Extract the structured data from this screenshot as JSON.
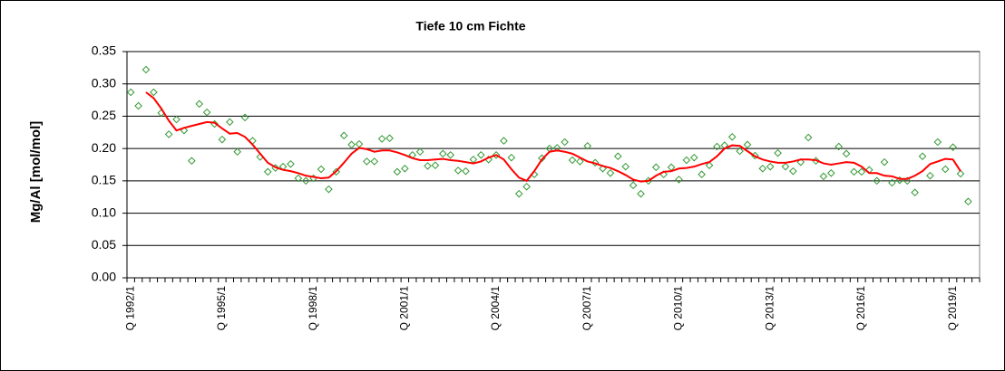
{
  "chart_data": {
    "type": "line",
    "title": "Tiefe  10 cm     Fichte",
    "y_label": "Mg/Al [mol/mol]",
    "categories": [
      "Q 1992/1",
      null,
      null,
      null,
      null,
      null,
      null,
      null,
      null,
      null,
      null,
      null,
      "Q 1995/1",
      null,
      null,
      null,
      null,
      null,
      null,
      null,
      null,
      null,
      null,
      null,
      "Q 1998/1",
      null,
      null,
      null,
      null,
      null,
      null,
      null,
      null,
      null,
      null,
      null,
      "Q 2001/1",
      null,
      null,
      null,
      null,
      null,
      null,
      null,
      null,
      null,
      null,
      null,
      "Q 2004/1",
      null,
      null,
      null,
      null,
      null,
      null,
      null,
      null,
      null,
      null,
      null,
      "Q 2007/1",
      null,
      null,
      null,
      null,
      null,
      null,
      null,
      null,
      null,
      null,
      null,
      "Q 2010/1",
      null,
      null,
      null,
      null,
      null,
      null,
      null,
      null,
      null,
      null,
      null,
      "Q 2013/1",
      null,
      null,
      null,
      null,
      null,
      null,
      null,
      null,
      null,
      null,
      null,
      "Q 2016/1",
      null,
      null,
      null,
      null,
      null,
      null,
      null,
      null,
      null,
      null,
      null,
      "Q 2019/1",
      null,
      null,
      null
    ],
    "series": [
      {
        "color": "#339933",
        "marker": "diamond",
        "values": [
          0.287,
          0.266,
          0.322,
          0.287,
          0.255,
          0.222,
          0.245,
          0.228,
          0.181,
          0.269,
          0.256,
          0.238,
          0.214,
          0.241,
          0.195,
          0.248,
          0.212,
          0.187,
          0.164,
          0.17,
          0.172,
          0.176,
          0.154,
          0.15,
          0.154,
          0.168,
          0.137,
          0.164,
          0.22,
          0.206,
          0.207,
          0.18,
          0.18,
          0.215,
          0.216,
          0.164,
          0.169,
          0.19,
          0.195,
          0.173,
          0.174,
          0.192,
          0.19,
          0.166,
          0.165,
          0.183,
          0.19,
          0.183,
          0.19,
          0.212,
          0.186,
          0.13,
          0.141,
          0.16,
          0.185,
          0.2,
          0.201,
          0.21,
          0.182,
          0.18,
          0.204,
          0.178,
          0.169,
          0.162,
          0.188,
          0.172,
          0.143,
          0.13,
          0.15,
          0.171,
          0.16,
          0.171,
          0.152,
          0.182,
          0.186,
          0.16,
          0.174,
          0.203,
          0.205,
          0.218,
          0.196,
          0.206,
          0.189,
          0.169,
          0.172,
          0.193,
          0.172,
          0.165,
          0.179,
          0.217,
          0.181,
          0.157,
          0.162,
          0.203,
          0.192,
          0.164,
          0.164,
          0.167,
          0.15,
          0.179,
          0.147,
          0.151,
          0.15,
          0.132,
          0.188,
          0.158,
          0.21,
          0.168,
          0.202,
          0.161,
          0.118,
          null
        ]
      },
      {
        "color": "#ff0000",
        "values": [
          null,
          null,
          0.287,
          0.278,
          0.262,
          0.243,
          0.228,
          0.232,
          0.235,
          0.238,
          0.241,
          0.24,
          0.231,
          0.223,
          0.224,
          0.218,
          0.206,
          0.192,
          0.178,
          0.171,
          0.167,
          0.165,
          0.162,
          0.158,
          0.156,
          0.154,
          0.155,
          0.165,
          0.178,
          0.192,
          0.201,
          0.199,
          0.195,
          0.197,
          0.197,
          0.194,
          0.19,
          0.185,
          0.182,
          0.182,
          0.183,
          0.184,
          0.182,
          0.181,
          0.179,
          0.177,
          0.18,
          0.186,
          0.19,
          0.183,
          0.168,
          0.155,
          0.15,
          0.165,
          0.183,
          0.195,
          0.197,
          0.195,
          0.192,
          0.186,
          0.18,
          0.177,
          0.173,
          0.17,
          0.165,
          0.159,
          0.152,
          0.149,
          0.15,
          0.158,
          0.164,
          0.165,
          0.169,
          0.17,
          0.172,
          0.176,
          0.179,
          0.188,
          0.2,
          0.205,
          0.204,
          0.196,
          0.188,
          0.183,
          0.18,
          0.178,
          0.178,
          0.18,
          0.183,
          0.183,
          0.182,
          0.177,
          0.175,
          0.177,
          0.179,
          0.178,
          0.172,
          0.162,
          0.162,
          0.158,
          0.157,
          0.153,
          0.153,
          0.158,
          0.165,
          0.176,
          0.18,
          0.184,
          0.183,
          0.165,
          null,
          null
        ]
      }
    ],
    "ylim": [
      0,
      0.35
    ],
    "yticks": [
      {
        "value": 0,
        "label": "0.00"
      },
      0.05,
      {
        "value": 0.1,
        "label": "0.10"
      },
      0.15,
      {
        "value": 0.2,
        "label": "0.20"
      },
      0.25,
      {
        "value": 0.3,
        "label": "0.30"
      },
      0.35
    ],
    "grid": true
  }
}
